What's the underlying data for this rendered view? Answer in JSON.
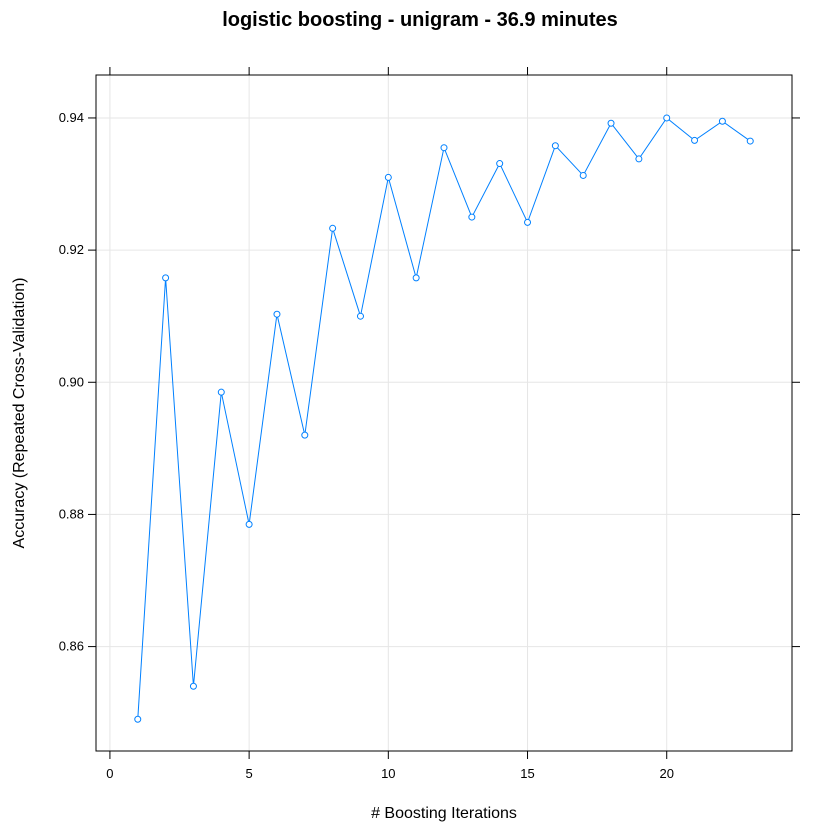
{
  "chart_data": {
    "type": "line",
    "title": "logistic boosting - unigram - 36.9 minutes",
    "xlabel": "# Boosting Iterations",
    "ylabel": "Accuracy (Repeated Cross-Validation)",
    "xlim": [
      -0.5,
      24.5
    ],
    "ylim": [
      0.8442,
      0.9465
    ],
    "grid": true,
    "x_ticks": [
      0,
      5,
      10,
      15,
      20
    ],
    "y_ticks": [
      0.86,
      0.88,
      0.9,
      0.92,
      0.94
    ],
    "x_tick_labels": [
      "0",
      "5",
      "10",
      "15",
      "20"
    ],
    "y_tick_labels": [
      "0.86",
      "0.88",
      "0.90",
      "0.92",
      "0.94"
    ],
    "color": "#0080ff",
    "series": [
      {
        "x": [
          1,
          2,
          3,
          4,
          5,
          6,
          7,
          8,
          9,
          10,
          11,
          12,
          13,
          14,
          15,
          16,
          17,
          18,
          19,
          20,
          21,
          22,
          23
        ],
        "values": [
          0.849,
          0.9158,
          0.854,
          0.8985,
          0.8785,
          0.9103,
          0.892,
          0.9233,
          0.91,
          0.931,
          0.9158,
          0.9355,
          0.925,
          0.9331,
          0.9242,
          0.9358,
          0.9313,
          0.9392,
          0.9338,
          0.94,
          0.9366,
          0.9395,
          0.9365
        ]
      }
    ]
  }
}
